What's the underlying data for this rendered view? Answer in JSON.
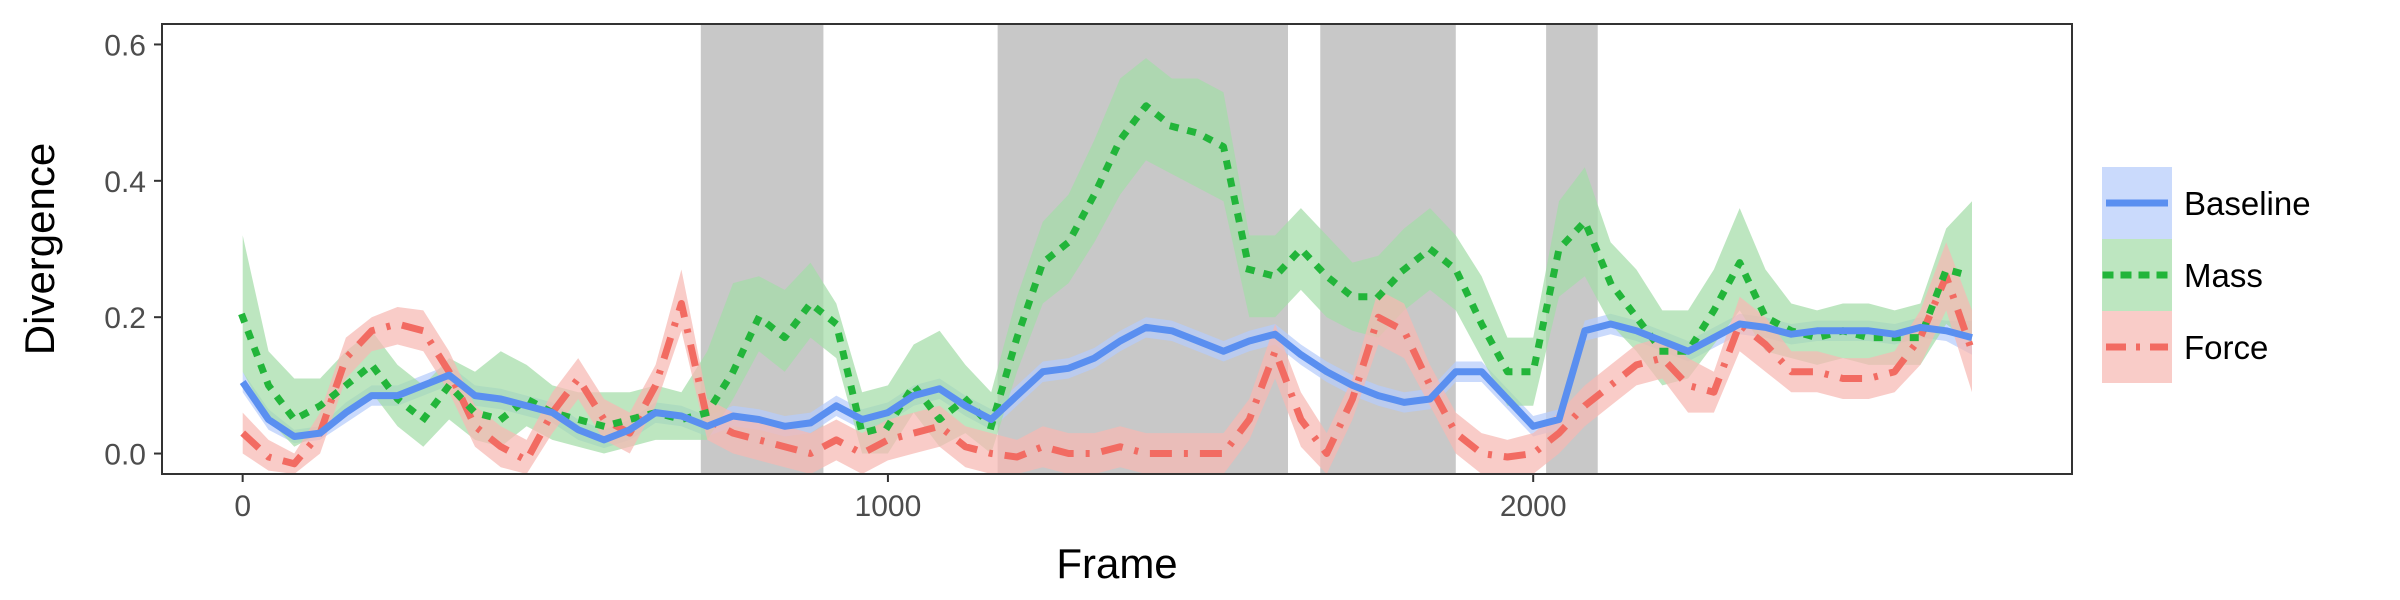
{
  "chart_data": {
    "type": "line",
    "xlabel": "Frame",
    "ylabel": "Divergence",
    "xlim": [
      -125,
      2835
    ],
    "ylim": [
      -0.03,
      0.63
    ],
    "x_ticks": [
      0,
      1000,
      2000
    ],
    "x_tick_labels": [
      "0",
      "1000",
      "2000"
    ],
    "y_ticks": [
      0.0,
      0.2,
      0.4,
      0.6
    ],
    "y_tick_labels": [
      "0.0",
      "0.2",
      "0.4",
      "0.6"
    ],
    "grid": false,
    "legend_position": "right",
    "shaded_regions": [
      [
        710,
        900
      ],
      [
        1170,
        1620
      ],
      [
        1670,
        1880
      ],
      [
        2020,
        2100
      ]
    ],
    "shaded_color": "#c8c8c8",
    "series": [
      {
        "name": "Baseline",
        "line_color": "#5a8ff0",
        "band_color": "#b6ccfb",
        "dash": "solid",
        "x": [
          0,
          40,
          80,
          120,
          160,
          200,
          240,
          280,
          320,
          360,
          400,
          440,
          480,
          520,
          560,
          600,
          640,
          680,
          720,
          760,
          800,
          840,
          880,
          920,
          960,
          1000,
          1040,
          1080,
          1120,
          1160,
          1200,
          1240,
          1280,
          1320,
          1360,
          1400,
          1440,
          1480,
          1520,
          1560,
          1600,
          1640,
          1680,
          1720,
          1760,
          1800,
          1840,
          1880,
          1920,
          1960,
          2000,
          2040,
          2080,
          2120,
          2160,
          2200,
          2240,
          2280,
          2320,
          2360,
          2400,
          2440,
          2480,
          2520,
          2560,
          2600,
          2640,
          2680
        ],
        "y": [
          0.105,
          0.05,
          0.025,
          0.03,
          0.06,
          0.085,
          0.085,
          0.1,
          0.115,
          0.085,
          0.08,
          0.07,
          0.06,
          0.035,
          0.02,
          0.035,
          0.06,
          0.055,
          0.04,
          0.055,
          0.05,
          0.04,
          0.045,
          0.07,
          0.05,
          0.06,
          0.085,
          0.095,
          0.07,
          0.05,
          0.085,
          0.12,
          0.125,
          0.14,
          0.165,
          0.185,
          0.18,
          0.165,
          0.15,
          0.165,
          0.175,
          0.145,
          0.12,
          0.1,
          0.085,
          0.075,
          0.08,
          0.12,
          0.12,
          0.08,
          0.04,
          0.05,
          0.18,
          0.19,
          0.18,
          0.165,
          0.15,
          0.17,
          0.19,
          0.185,
          0.175,
          0.18,
          0.18,
          0.18,
          0.175,
          0.185,
          0.18,
          0.17
        ],
        "lower": [
          0.09,
          0.035,
          0.015,
          0.02,
          0.045,
          0.07,
          0.07,
          0.085,
          0.1,
          0.07,
          0.065,
          0.055,
          0.045,
          0.02,
          0.008,
          0.02,
          0.045,
          0.04,
          0.025,
          0.04,
          0.035,
          0.025,
          0.03,
          0.055,
          0.035,
          0.045,
          0.07,
          0.08,
          0.055,
          0.035,
          0.07,
          0.105,
          0.11,
          0.125,
          0.15,
          0.17,
          0.165,
          0.15,
          0.135,
          0.15,
          0.16,
          0.13,
          0.105,
          0.085,
          0.07,
          0.06,
          0.065,
          0.105,
          0.105,
          0.065,
          0.025,
          0.035,
          0.165,
          0.175,
          0.165,
          0.15,
          0.135,
          0.155,
          0.175,
          0.17,
          0.16,
          0.165,
          0.165,
          0.165,
          0.16,
          0.17,
          0.165,
          0.145
        ],
        "upper": [
          0.12,
          0.065,
          0.035,
          0.04,
          0.075,
          0.1,
          0.1,
          0.115,
          0.13,
          0.1,
          0.095,
          0.085,
          0.075,
          0.05,
          0.035,
          0.05,
          0.075,
          0.07,
          0.055,
          0.07,
          0.065,
          0.055,
          0.06,
          0.085,
          0.065,
          0.075,
          0.1,
          0.11,
          0.085,
          0.065,
          0.1,
          0.135,
          0.14,
          0.155,
          0.18,
          0.2,
          0.195,
          0.18,
          0.165,
          0.18,
          0.19,
          0.16,
          0.135,
          0.115,
          0.1,
          0.09,
          0.095,
          0.135,
          0.135,
          0.095,
          0.055,
          0.065,
          0.195,
          0.205,
          0.195,
          0.18,
          0.165,
          0.185,
          0.205,
          0.2,
          0.19,
          0.195,
          0.195,
          0.195,
          0.19,
          0.2,
          0.195,
          0.195
        ]
      },
      {
        "name": "Mass",
        "line_color": "#22b53a",
        "band_color": "#a4dca7",
        "dash": "dotted",
        "x": [
          0,
          40,
          80,
          120,
          160,
          200,
          240,
          280,
          320,
          360,
          400,
          440,
          480,
          520,
          560,
          600,
          640,
          680,
          720,
          760,
          800,
          840,
          880,
          920,
          960,
          1000,
          1040,
          1080,
          1120,
          1160,
          1200,
          1240,
          1280,
          1320,
          1360,
          1400,
          1440,
          1480,
          1520,
          1560,
          1600,
          1640,
          1680,
          1720,
          1760,
          1800,
          1840,
          1880,
          1920,
          1960,
          2000,
          2040,
          2080,
          2120,
          2160,
          2200,
          2240,
          2280,
          2320,
          2360,
          2400,
          2440,
          2480,
          2520,
          2560,
          2600,
          2640,
          2680
        ],
        "y": [
          0.2,
          0.1,
          0.05,
          0.07,
          0.1,
          0.13,
          0.08,
          0.05,
          0.1,
          0.06,
          0.05,
          0.08,
          0.06,
          0.05,
          0.04,
          0.05,
          0.06,
          0.05,
          0.06,
          0.12,
          0.2,
          0.17,
          0.22,
          0.19,
          0.03,
          0.04,
          0.1,
          0.05,
          0.08,
          0.04,
          0.17,
          0.28,
          0.31,
          0.38,
          0.46,
          0.51,
          0.48,
          0.47,
          0.45,
          0.27,
          0.26,
          0.3,
          0.26,
          0.23,
          0.23,
          0.27,
          0.3,
          0.27,
          0.19,
          0.12,
          0.12,
          0.3,
          0.34,
          0.25,
          0.2,
          0.15,
          0.15,
          0.21,
          0.28,
          0.2,
          0.18,
          0.17,
          0.18,
          0.17,
          0.17,
          0.17,
          0.27,
          0.26
        ],
        "lower": [
          0.12,
          0.05,
          0.01,
          0.03,
          0.06,
          0.09,
          0.04,
          0.01,
          0.05,
          0.02,
          0.01,
          0.04,
          0.02,
          0.01,
          0.0,
          0.01,
          0.02,
          0.02,
          0.02,
          0.08,
          0.15,
          0.12,
          0.17,
          0.14,
          0.0,
          0.0,
          0.06,
          0.01,
          0.03,
          0.0,
          0.12,
          0.22,
          0.25,
          0.31,
          0.38,
          0.43,
          0.41,
          0.39,
          0.37,
          0.2,
          0.2,
          0.24,
          0.2,
          0.18,
          0.17,
          0.21,
          0.24,
          0.21,
          0.14,
          0.07,
          0.07,
          0.23,
          0.26,
          0.19,
          0.15,
          0.1,
          0.11,
          0.16,
          0.21,
          0.15,
          0.14,
          0.13,
          0.14,
          0.13,
          0.13,
          0.13,
          0.19,
          0.16
        ],
        "upper": [
          0.32,
          0.15,
          0.11,
          0.11,
          0.15,
          0.18,
          0.13,
          0.1,
          0.14,
          0.12,
          0.15,
          0.13,
          0.1,
          0.09,
          0.09,
          0.09,
          0.1,
          0.09,
          0.15,
          0.25,
          0.26,
          0.24,
          0.28,
          0.22,
          0.09,
          0.1,
          0.16,
          0.18,
          0.13,
          0.09,
          0.23,
          0.34,
          0.38,
          0.46,
          0.55,
          0.58,
          0.55,
          0.55,
          0.53,
          0.32,
          0.32,
          0.36,
          0.32,
          0.28,
          0.29,
          0.33,
          0.36,
          0.32,
          0.26,
          0.17,
          0.17,
          0.37,
          0.42,
          0.31,
          0.27,
          0.21,
          0.21,
          0.27,
          0.36,
          0.27,
          0.22,
          0.21,
          0.22,
          0.22,
          0.21,
          0.22,
          0.33,
          0.37
        ]
      },
      {
        "name": "Force",
        "line_color": "#f26b62",
        "band_color": "#f7b8b3",
        "dash": "dashdot",
        "x": [
          0,
          40,
          80,
          120,
          160,
          200,
          240,
          280,
          320,
          360,
          400,
          440,
          480,
          520,
          560,
          600,
          640,
          680,
          720,
          760,
          800,
          840,
          880,
          920,
          960,
          1000,
          1040,
          1080,
          1120,
          1160,
          1200,
          1240,
          1280,
          1320,
          1360,
          1400,
          1440,
          1480,
          1520,
          1560,
          1600,
          1640,
          1680,
          1720,
          1760,
          1800,
          1840,
          1880,
          1920,
          1960,
          2000,
          2040,
          2080,
          2120,
          2160,
          2200,
          2240,
          2280,
          2320,
          2360,
          2400,
          2440,
          2480,
          2520,
          2560,
          2600,
          2640,
          2680
        ],
        "y": [
          0.03,
          -0.005,
          -0.015,
          0.03,
          0.14,
          0.18,
          0.19,
          0.18,
          0.12,
          0.04,
          0.01,
          -0.01,
          0.06,
          0.11,
          0.05,
          0.03,
          0.1,
          0.22,
          0.05,
          0.03,
          0.02,
          0.01,
          0.0,
          0.02,
          0.0,
          0.02,
          0.03,
          0.04,
          0.01,
          0.0,
          -0.005,
          0.01,
          0.0,
          0.0,
          0.01,
          0.0,
          0.0,
          0.0,
          0.0,
          0.05,
          0.15,
          0.05,
          0.0,
          0.08,
          0.2,
          0.18,
          0.1,
          0.03,
          0.0,
          -0.005,
          0.0,
          0.03,
          0.07,
          0.1,
          0.13,
          0.14,
          0.1,
          0.09,
          0.19,
          0.16,
          0.12,
          0.12,
          0.11,
          0.11,
          0.12,
          0.17,
          0.26,
          0.15
        ],
        "lower": [
          0.0,
          -0.025,
          -0.03,
          0.0,
          0.11,
          0.15,
          0.16,
          0.15,
          0.09,
          0.01,
          -0.02,
          -0.03,
          0.03,
          0.08,
          0.02,
          0.0,
          0.07,
          0.18,
          0.02,
          0.0,
          -0.01,
          -0.02,
          -0.03,
          -0.01,
          -0.03,
          -0.01,
          0.0,
          0.01,
          -0.02,
          -0.03,
          -0.03,
          -0.02,
          -0.03,
          -0.03,
          -0.02,
          -0.03,
          -0.03,
          -0.03,
          -0.03,
          0.02,
          0.11,
          0.01,
          -0.03,
          0.05,
          0.16,
          0.14,
          0.07,
          0.0,
          -0.03,
          -0.03,
          -0.03,
          0.0,
          0.04,
          0.07,
          0.1,
          0.11,
          0.06,
          0.06,
          0.15,
          0.12,
          0.09,
          0.09,
          0.08,
          0.08,
          0.09,
          0.13,
          0.21,
          0.09
        ],
        "upper": [
          0.06,
          0.02,
          0.0,
          0.06,
          0.17,
          0.2,
          0.215,
          0.21,
          0.15,
          0.07,
          0.04,
          0.02,
          0.09,
          0.14,
          0.08,
          0.06,
          0.13,
          0.27,
          0.08,
          0.06,
          0.05,
          0.04,
          0.03,
          0.05,
          0.03,
          0.05,
          0.06,
          0.07,
          0.04,
          0.03,
          0.02,
          0.04,
          0.03,
          0.03,
          0.04,
          0.03,
          0.03,
          0.03,
          0.03,
          0.08,
          0.19,
          0.09,
          0.03,
          0.11,
          0.24,
          0.22,
          0.13,
          0.06,
          0.03,
          0.02,
          0.03,
          0.06,
          0.1,
          0.13,
          0.16,
          0.17,
          0.14,
          0.12,
          0.23,
          0.2,
          0.15,
          0.15,
          0.14,
          0.14,
          0.15,
          0.21,
          0.31,
          0.21
        ]
      }
    ]
  }
}
